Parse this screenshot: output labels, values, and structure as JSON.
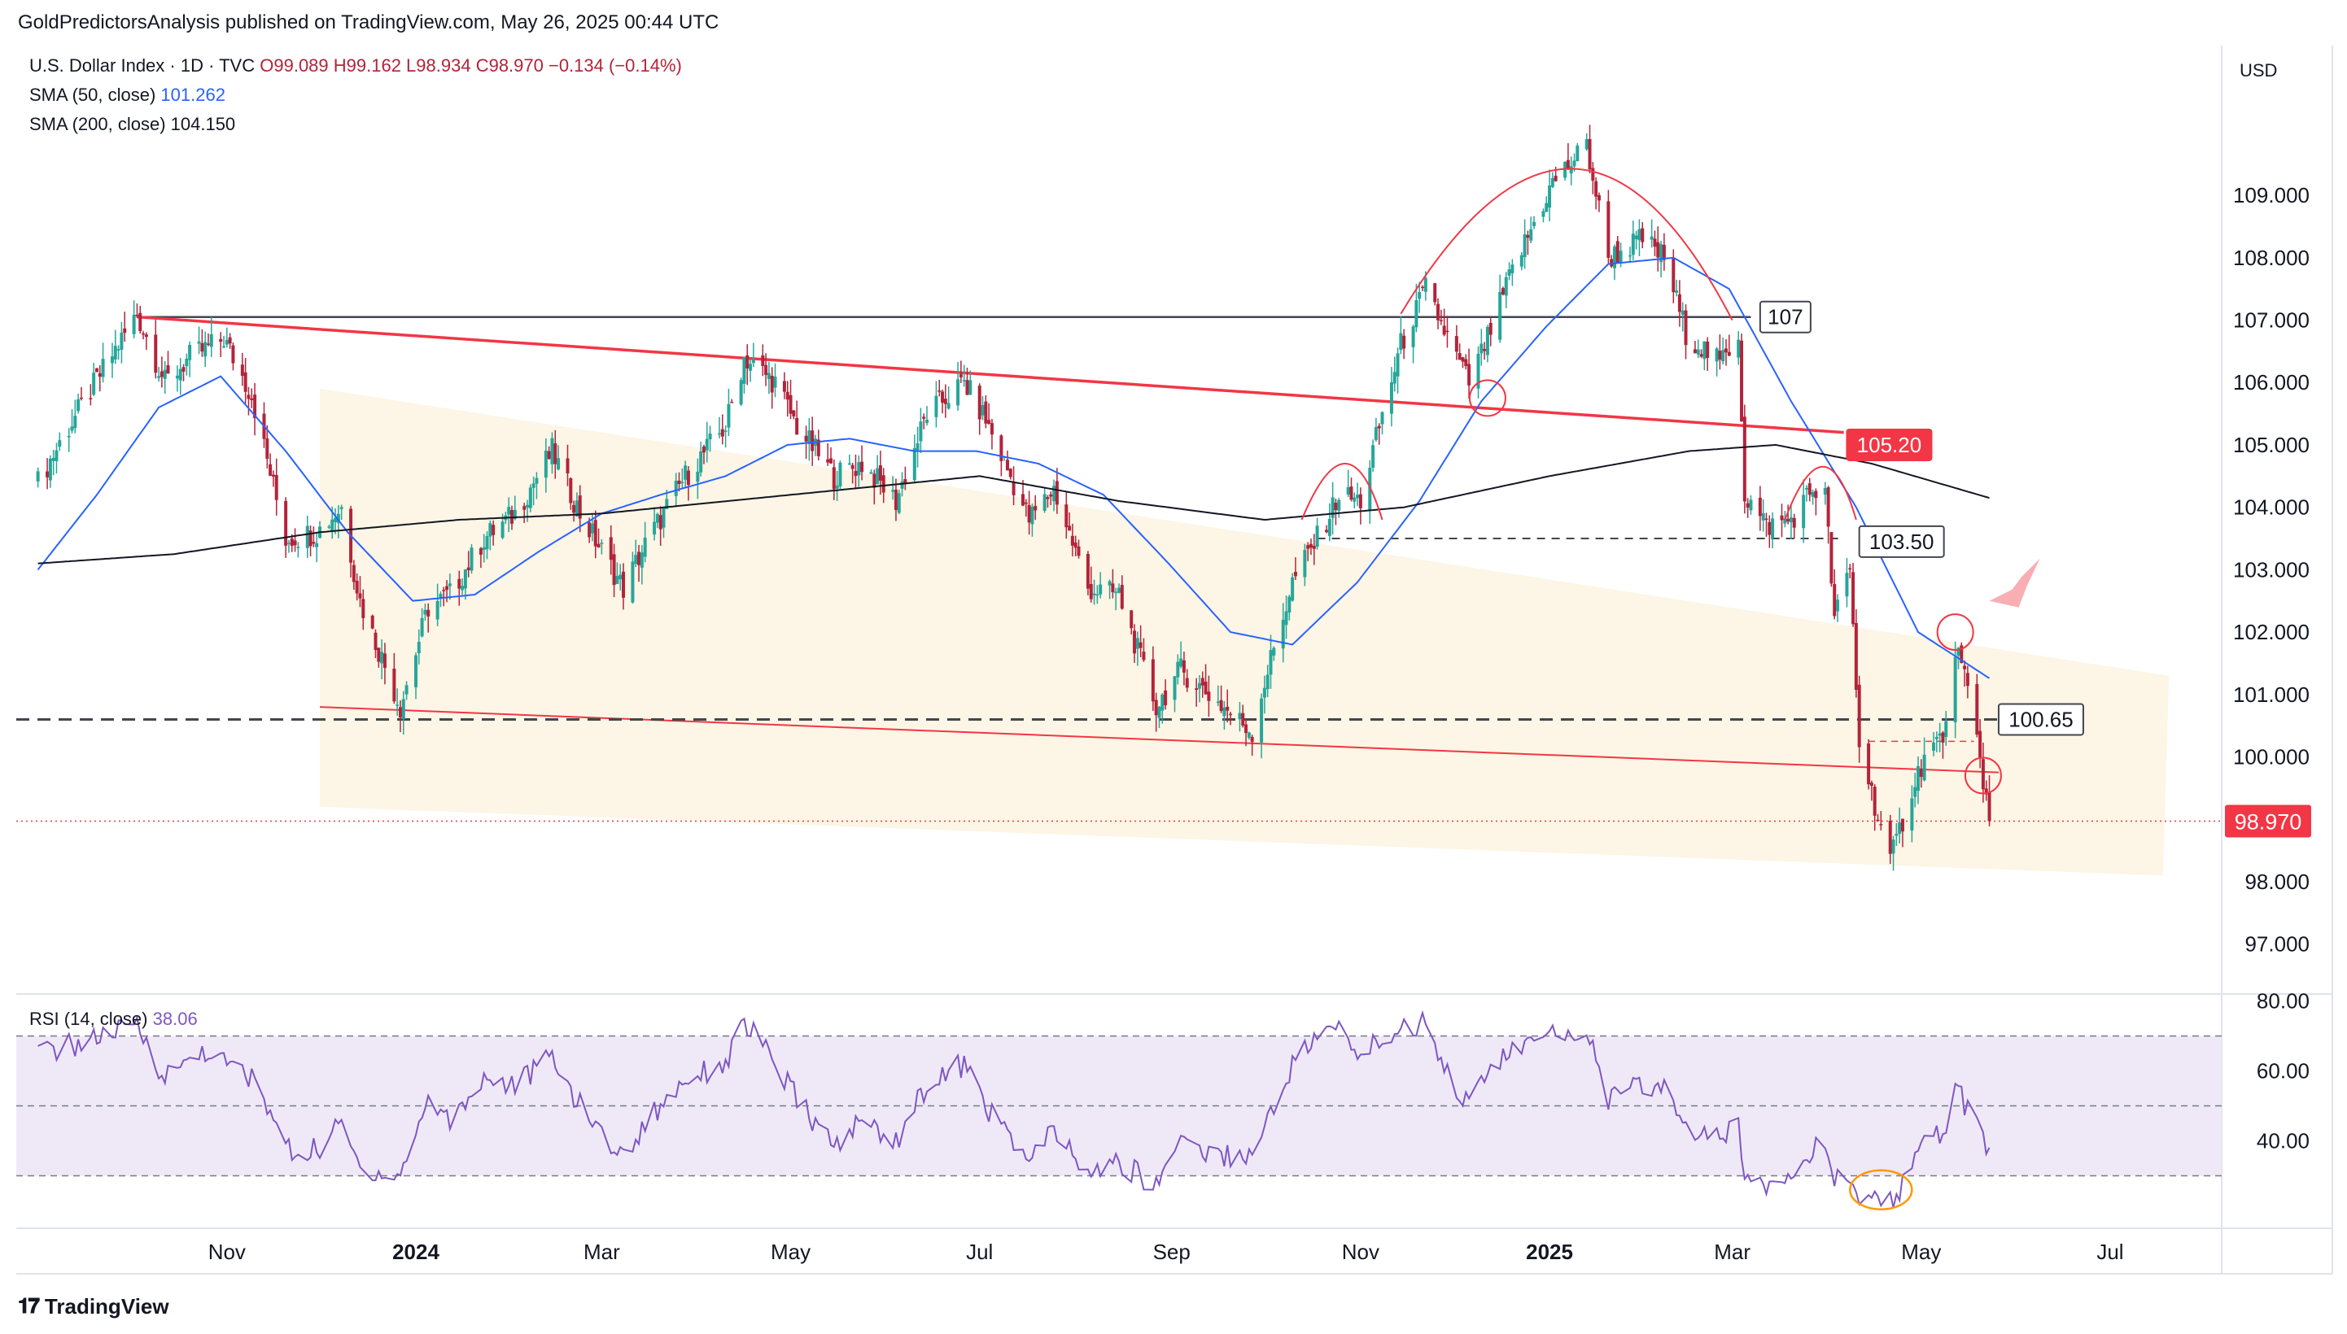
{
  "header": {
    "publisher": "GoldPredictorsAnalysis published on TradingView.com, May 26, 2025 00:44 UTC"
  },
  "legend": {
    "symbol": "U.S. Dollar Index · 1D · TVC",
    "ohlc": "O99.089  H99.162  L98.934  C98.970  −0.134 (−0.14%)",
    "sma50_label": "SMA (50, close)",
    "sma50_value": "101.262",
    "sma200_label": "SMA (200, close)",
    "sma200_value": "104.150",
    "rsi_label": "RSI (14, close)",
    "rsi_value": "38.06"
  },
  "currency": "USD",
  "footer": {
    "brand": "TradingView"
  },
  "colors": {
    "up": "#26a69a",
    "down": "#b2243a",
    "sma50": "#2962ff",
    "sma200": "#131722",
    "resistance": "#f23645",
    "rsi": "#7e57c2",
    "channel": "#fdf3e1",
    "circle_orange": "#ff9800"
  },
  "chart_data": {
    "type": "candlestick",
    "price_axis": {
      "ticks": [
        "109.000",
        "108.000",
        "107.000",
        "106.000",
        "105.000",
        "104.000",
        "103.000",
        "102.000",
        "101.000",
        "100.000",
        "98.000",
        "97.000"
      ],
      "range": [
        96.2,
        111.4
      ]
    },
    "time_axis": {
      "labels": [
        "Nov",
        "2024",
        "Mar",
        "May",
        "Jul",
        "Sep",
        "Nov",
        "2025",
        "Mar",
        "May",
        "Jul"
      ],
      "bold": [
        "2024",
        "2025"
      ]
    },
    "rsi_axis": {
      "ticks": [
        "80.00",
        "60.00",
        "40.00"
      ],
      "range": [
        15,
        82
      ],
      "bands": [
        70,
        50,
        30
      ]
    },
    "last_price": "98.970",
    "annotations": {
      "level_107": "107",
      "level_105_20": "105.20",
      "level_103_50": "103.50",
      "level_100_65": "100.65"
    },
    "price_anchors": [
      [
        "2023-09-01",
        104.4
      ],
      [
        "2023-09-10",
        105.2
      ],
      [
        "2023-09-22",
        106.2
      ],
      [
        "2023-10-03",
        107.1
      ],
      [
        "2023-10-12",
        106.0
      ],
      [
        "2023-10-20",
        106.4
      ],
      [
        "2023-10-31",
        106.7
      ],
      [
        "2023-11-09",
        105.8
      ],
      [
        "2023-11-20",
        103.5
      ],
      [
        "2023-11-30",
        103.6
      ],
      [
        "2023-12-08",
        104.0
      ],
      [
        "2023-12-14",
        102.5
      ],
      [
        "2023-12-27",
        100.8
      ],
      [
        "2024-01-05",
        102.4
      ],
      [
        "2024-01-12",
        102.6
      ],
      [
        "2024-01-23",
        103.5
      ],
      [
        "2024-02-02",
        103.9
      ],
      [
        "2024-02-14",
        104.9
      ],
      [
        "2024-02-23",
        103.9
      ],
      [
        "2024-03-08",
        102.7
      ],
      [
        "2024-03-15",
        103.4
      ],
      [
        "2024-03-28",
        104.5
      ],
      [
        "2024-04-10",
        105.3
      ],
      [
        "2024-04-16",
        106.4
      ],
      [
        "2024-04-26",
        106.0
      ],
      [
        "2024-05-03",
        105.3
      ],
      [
        "2024-05-15",
        104.5
      ],
      [
        "2024-05-24",
        104.7
      ],
      [
        "2024-06-04",
        104.1
      ],
      [
        "2024-06-14",
        105.5
      ],
      [
        "2024-06-26",
        106.0
      ],
      [
        "2024-07-03",
        105.4
      ],
      [
        "2024-07-17",
        103.8
      ],
      [
        "2024-07-25",
        104.3
      ],
      [
        "2024-08-05",
        102.7
      ],
      [
        "2024-08-15",
        102.6
      ],
      [
        "2024-08-27",
        100.8
      ],
      [
        "2024-09-04",
        101.4
      ],
      [
        "2024-09-13",
        101.0
      ],
      [
        "2024-09-27",
        100.4
      ],
      [
        "2024-10-01",
        101.2
      ],
      [
        "2024-10-10",
        102.8
      ],
      [
        "2024-10-18",
        103.5
      ],
      [
        "2024-10-25",
        104.2
      ],
      [
        "2024-11-01",
        104.1
      ],
      [
        "2024-11-06",
        105.1
      ],
      [
        "2024-11-14",
        106.6
      ],
      [
        "2024-11-22",
        107.5
      ],
      [
        "2024-12-02",
        106.4
      ],
      [
        "2024-12-06",
        106.0
      ],
      [
        "2024-12-12",
        106.7
      ],
      [
        "2024-12-20",
        107.8
      ],
      [
        "2025-01-02",
        109.2
      ],
      [
        "2025-01-13",
        109.8
      ],
      [
        "2025-01-20",
        108.0
      ],
      [
        "2025-01-31",
        108.3
      ],
      [
        "2025-02-07",
        108.0
      ],
      [
        "2025-02-14",
        106.8
      ],
      [
        "2025-02-25",
        106.3
      ],
      [
        "2025-03-03",
        106.8
      ],
      [
        "2025-03-05",
        104.2
      ],
      [
        "2025-03-12",
        103.7
      ],
      [
        "2025-03-20",
        103.8
      ],
      [
        "2025-03-27",
        104.3
      ],
      [
        "2025-03-31",
        104.2
      ],
      [
        "2025-04-03",
        102.2
      ],
      [
        "2025-04-08",
        103.0
      ],
      [
        "2025-04-11",
        100.2
      ],
      [
        "2025-04-21",
        98.3
      ],
      [
        "2025-04-28",
        99.5
      ],
      [
        "2025-05-02",
        100.0
      ],
      [
        "2025-05-09",
        100.4
      ],
      [
        "2025-05-12",
        101.8
      ],
      [
        "2025-05-16",
        101.0
      ],
      [
        "2025-05-20",
        100.0
      ],
      [
        "2025-05-23",
        98.97
      ]
    ],
    "sma50_anchors": [
      [
        "2023-09-01",
        103.0
      ],
      [
        "2023-09-20",
        104.2
      ],
      [
        "2023-10-10",
        105.6
      ],
      [
        "2023-10-30",
        106.1
      ],
      [
        "2023-11-20",
        104.9
      ],
      [
        "2023-12-10",
        103.6
      ],
      [
        "2023-12-31",
        102.5
      ],
      [
        "2024-01-20",
        102.6
      ],
      [
        "2024-02-10",
        103.3
      ],
      [
        "2024-03-01",
        103.9
      ],
      [
        "2024-03-20",
        104.2
      ],
      [
        "2024-04-10",
        104.5
      ],
      [
        "2024-04-30",
        105.0
      ],
      [
        "2024-05-20",
        105.1
      ],
      [
        "2024-06-10",
        104.9
      ],
      [
        "2024-06-30",
        104.9
      ],
      [
        "2024-07-20",
        104.7
      ],
      [
        "2024-08-10",
        104.2
      ],
      [
        "2024-08-31",
        103.1
      ],
      [
        "2024-09-20",
        102.0
      ],
      [
        "2024-10-10",
        101.8
      ],
      [
        "2024-10-31",
        102.8
      ],
      [
        "2024-11-20",
        104.1
      ],
      [
        "2024-12-10",
        105.7
      ],
      [
        "2024-12-31",
        106.9
      ],
      [
        "2025-01-20",
        107.9
      ],
      [
        "2025-02-10",
        108.0
      ],
      [
        "2025-02-28",
        107.5
      ],
      [
        "2025-03-20",
        105.7
      ],
      [
        "2025-04-10",
        104.0
      ],
      [
        "2025-04-30",
        102.0
      ],
      [
        "2025-05-23",
        101.26
      ]
    ],
    "sma200_anchors": [
      [
        "2023-09-01",
        103.1
      ],
      [
        "2023-10-15",
        103.25
      ],
      [
        "2023-12-01",
        103.6
      ],
      [
        "2024-01-15",
        103.8
      ],
      [
        "2024-03-01",
        103.9
      ],
      [
        "2024-05-01",
        104.2
      ],
      [
        "2024-07-01",
        104.5
      ],
      [
        "2024-08-15",
        104.1
      ],
      [
        "2024-10-01",
        103.8
      ],
      [
        "2024-11-15",
        104.0
      ],
      [
        "2025-01-01",
        104.5
      ],
      [
        "2025-02-15",
        104.9
      ],
      [
        "2025-03-15",
        105.0
      ],
      [
        "2025-04-15",
        104.7
      ],
      [
        "2025-05-23",
        104.15
      ]
    ],
    "rsi_anchors": [
      [
        "2023-09-01",
        65
      ],
      [
        "2023-09-15",
        68
      ],
      [
        "2023-10-03",
        73
      ],
      [
        "2023-10-12",
        58
      ],
      [
        "2023-10-24",
        66
      ],
      [
        "2023-11-09",
        58
      ],
      [
        "2023-11-22",
        36
      ],
      [
        "2023-12-01",
        38
      ],
      [
        "2023-12-08",
        45
      ],
      [
        "2023-12-14",
        32
      ],
      [
        "2023-12-27",
        30
      ],
      [
        "2024-01-05",
        52
      ],
      [
        "2024-01-12",
        46
      ],
      [
        "2024-01-23",
        58
      ],
      [
        "2024-02-02",
        56
      ],
      [
        "2024-02-14",
        64
      ],
      [
        "2024-02-23",
        50
      ],
      [
        "2024-03-08",
        35
      ],
      [
        "2024-03-15",
        45
      ],
      [
        "2024-03-28",
        58
      ],
      [
        "2024-04-10",
        62
      ],
      [
        "2024-04-16",
        74
      ],
      [
        "2024-04-26",
        62
      ],
      [
        "2024-05-03",
        52
      ],
      [
        "2024-05-15",
        38
      ],
      [
        "2024-05-24",
        46
      ],
      [
        "2024-06-04",
        40
      ],
      [
        "2024-06-14",
        56
      ],
      [
        "2024-06-26",
        62
      ],
      [
        "2024-07-03",
        50
      ],
      [
        "2024-07-17",
        34
      ],
      [
        "2024-07-25",
        43
      ],
      [
        "2024-08-05",
        30
      ],
      [
        "2024-08-15",
        34
      ],
      [
        "2024-08-27",
        27
      ],
      [
        "2024-09-04",
        42
      ],
      [
        "2024-09-13",
        36
      ],
      [
        "2024-09-27",
        36
      ],
      [
        "2024-10-01",
        44
      ],
      [
        "2024-10-10",
        62
      ],
      [
        "2024-10-18",
        70
      ],
      [
        "2024-10-25",
        72
      ],
      [
        "2024-11-01",
        64
      ],
      [
        "2024-11-06",
        68
      ],
      [
        "2024-11-14",
        72
      ],
      [
        "2024-11-22",
        74
      ],
      [
        "2024-12-02",
        55
      ],
      [
        "2024-12-06",
        50
      ],
      [
        "2024-12-12",
        60
      ],
      [
        "2024-12-20",
        66
      ],
      [
        "2025-01-02",
        70
      ],
      [
        "2025-01-13",
        72
      ],
      [
        "2025-01-20",
        52
      ],
      [
        "2025-01-31",
        56
      ],
      [
        "2025-02-07",
        55
      ],
      [
        "2025-02-14",
        44
      ],
      [
        "2025-02-25",
        40
      ],
      [
        "2025-03-03",
        45
      ],
      [
        "2025-03-05",
        30
      ],
      [
        "2025-03-12",
        28
      ],
      [
        "2025-03-20",
        32
      ],
      [
        "2025-03-27",
        38
      ],
      [
        "2025-03-31",
        36
      ],
      [
        "2025-04-03",
        28
      ],
      [
        "2025-04-08",
        30
      ],
      [
        "2025-04-11",
        24
      ],
      [
        "2025-04-21",
        22
      ],
      [
        "2025-04-28",
        32
      ],
      [
        "2025-05-02",
        38
      ],
      [
        "2025-05-09",
        44
      ],
      [
        "2025-05-12",
        57
      ],
      [
        "2025-05-16",
        48
      ],
      [
        "2025-05-20",
        42
      ],
      [
        "2025-05-23",
        38.06
      ]
    ]
  }
}
